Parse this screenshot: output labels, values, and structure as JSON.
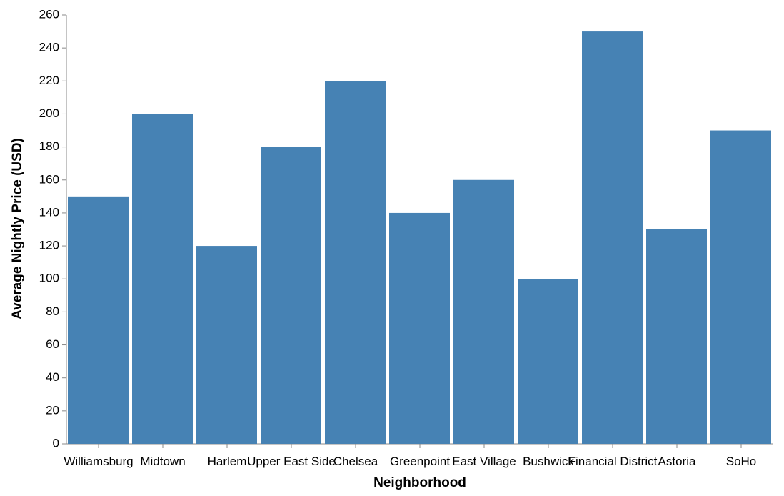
{
  "chart_data": {
    "type": "bar",
    "categories": [
      "Williamsburg",
      "Midtown",
      "Harlem",
      "Upper East Side",
      "Chelsea",
      "Greenpoint",
      "East Village",
      "Bushwick",
      "Financial District",
      "Astoria",
      "SoHo"
    ],
    "values": [
      150,
      200,
      120,
      180,
      220,
      140,
      160,
      100,
      250,
      130,
      190
    ],
    "xlabel": "Neighborhood",
    "ylabel": "Average Nightly Price (USD)",
    "ylim": [
      0,
      260
    ],
    "yticks": [
      0,
      20,
      40,
      60,
      80,
      100,
      120,
      140,
      160,
      180,
      200,
      220,
      240,
      260
    ],
    "grid": false,
    "bar_color": "#4682b4",
    "axis_color": "#888888"
  }
}
